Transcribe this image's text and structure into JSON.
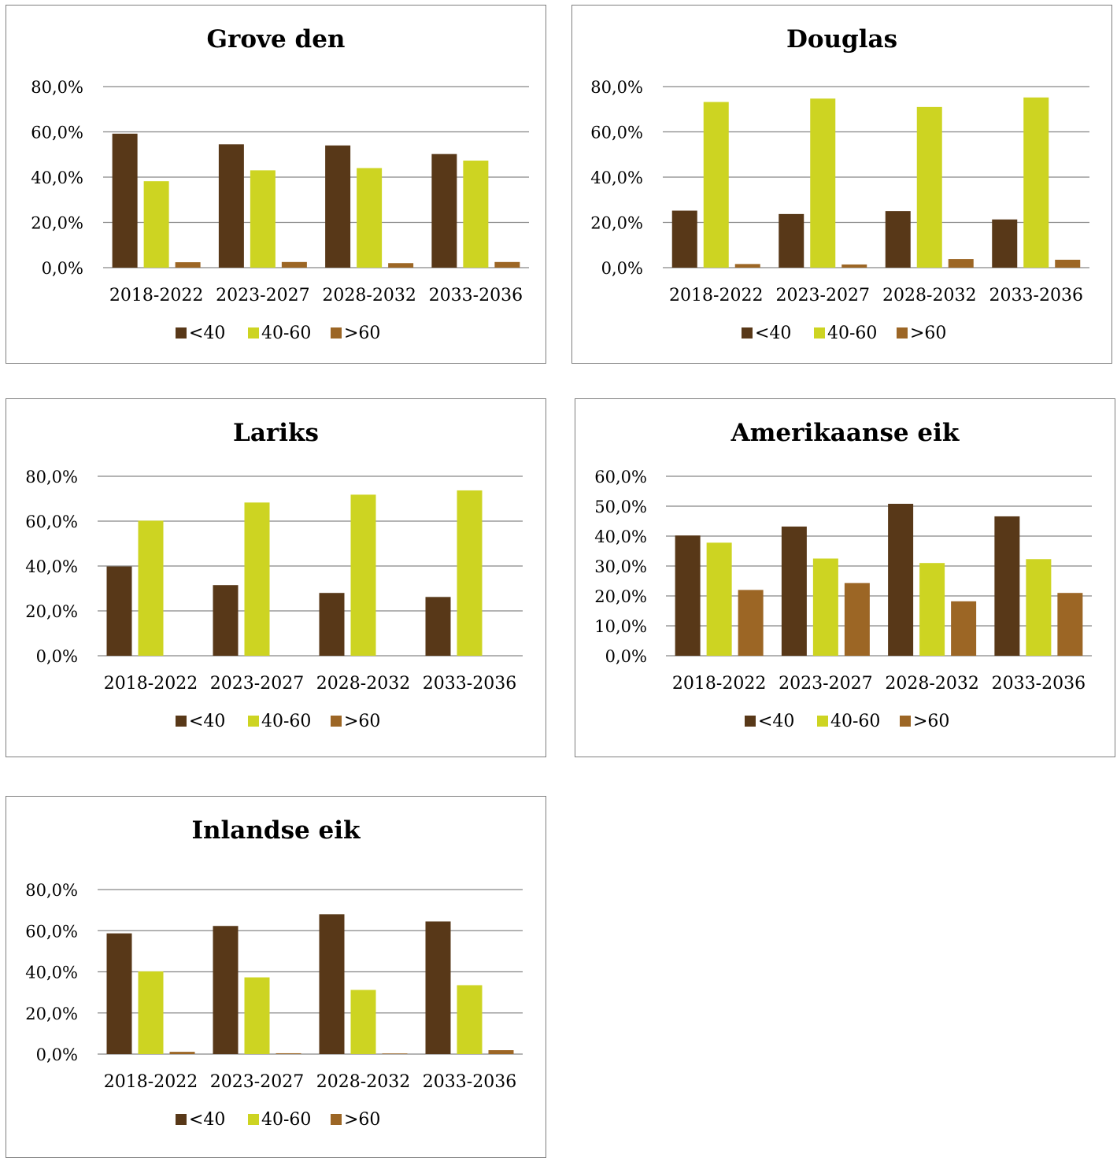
{
  "chart_data": [
    {
      "type": "bar",
      "title": "Grove den",
      "categories": [
        "2018-2022",
        "2023-2027",
        "2028-2032",
        "2033-2036"
      ],
      "yticks": [
        "0,0%",
        "20,0%",
        "40,0%",
        "60,0%",
        "80,0%"
      ],
      "ylim": [
        0,
        80
      ],
      "series": [
        {
          "name": "<40",
          "values": [
            59.2,
            54.5,
            54.0,
            50.2
          ]
        },
        {
          "name": "40-60",
          "values": [
            38.2,
            43.0,
            44.0,
            47.3
          ]
        },
        {
          "name": ">60",
          "values": [
            2.4,
            2.5,
            2.0,
            2.5
          ]
        }
      ]
    },
    {
      "type": "bar",
      "title": "Douglas",
      "categories": [
        "2018-2022",
        "2023-2027",
        "2028-2032",
        "2033-2036"
      ],
      "yticks": [
        "0,0%",
        "20,0%",
        "40,0%",
        "60,0%",
        "80,0%"
      ],
      "ylim": [
        0,
        80
      ],
      "series": [
        {
          "name": "<40",
          "values": [
            25.2,
            23.7,
            25.0,
            21.3
          ]
        },
        {
          "name": "40-60",
          "values": [
            73.2,
            74.7,
            71.0,
            75.2
          ]
        },
        {
          "name": ">60",
          "values": [
            1.6,
            1.4,
            3.8,
            3.5
          ]
        }
      ]
    },
    {
      "type": "bar",
      "title": "Lariks",
      "categories": [
        "2018-2022",
        "2023-2027",
        "2028-2032",
        "2033-2036"
      ],
      "yticks": [
        "0,0%",
        "20,0%",
        "40,0%",
        "60,0%",
        "80,0%"
      ],
      "ylim": [
        0,
        80
      ],
      "series": [
        {
          "name": "<40",
          "values": [
            39.8,
            31.5,
            28.0,
            26.2
          ]
        },
        {
          "name": "40-60",
          "values": [
            60.2,
            68.3,
            71.8,
            73.7
          ]
        },
        {
          "name": ">60",
          "values": [
            0,
            0,
            0,
            0
          ]
        }
      ]
    },
    {
      "type": "bar",
      "title": "Amerikaanse eik",
      "categories": [
        "2018-2022",
        "2023-2027",
        "2028-2032",
        "2033-2036"
      ],
      "yticks": [
        "0,0%",
        "10,0%",
        "20,0%",
        "30,0%",
        "40,0%",
        "50,0%",
        "60,0%"
      ],
      "ylim": [
        0,
        60
      ],
      "series": [
        {
          "name": "<40",
          "values": [
            40.2,
            43.2,
            50.8,
            46.6
          ]
        },
        {
          "name": "40-60",
          "values": [
            37.8,
            32.5,
            31.0,
            32.3
          ]
        },
        {
          "name": ">60",
          "values": [
            22.0,
            24.3,
            18.2,
            21.0
          ]
        }
      ]
    },
    {
      "type": "bar",
      "title": "Inlandse eik",
      "categories": [
        "2018-2022",
        "2023-2027",
        "2028-2032",
        "2033-2036"
      ],
      "yticks": [
        "0,0%",
        "20,0%",
        "40,0%",
        "60,0%",
        "80,0%"
      ],
      "ylim": [
        0,
        80
      ],
      "series": [
        {
          "name": "<40",
          "values": [
            58.7,
            62.3,
            68.0,
            64.5
          ]
        },
        {
          "name": "40-60",
          "values": [
            40.2,
            37.3,
            31.2,
            33.5
          ]
        },
        {
          "name": ">60",
          "values": [
            1.1,
            0.4,
            0.3,
            1.9
          ]
        }
      ]
    }
  ],
  "colors": {
    "series": [
      "#583818",
      "#cdd422",
      "#9c6625"
    ],
    "grid": "#868686",
    "border": "#7f7f7f"
  }
}
